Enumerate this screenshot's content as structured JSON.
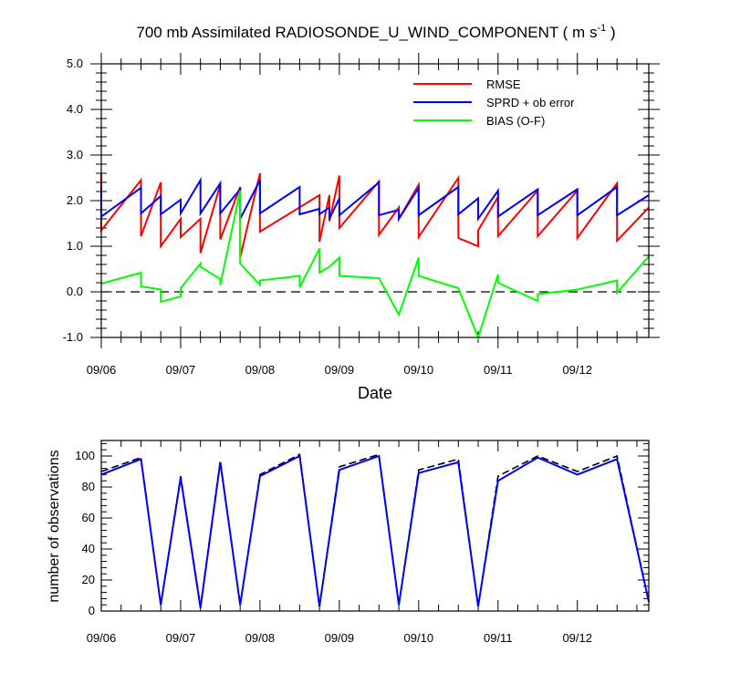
{
  "chart_data": [
    {
      "type": "line",
      "title_main": "700 mb Assimilated RADIOSONDE_U_WIND_COMPONENT ( m s",
      "title_sup": "-1",
      "title_tail": " )",
      "xlabel": "Date",
      "ylabel": "",
      "x_range": [
        0,
        6.9
      ],
      "ylim": [
        -1.0,
        5.0
      ],
      "x_ticks": [
        {
          "x": 0,
          "label": "09/06"
        },
        {
          "x": 1,
          "label": "09/07"
        },
        {
          "x": 2,
          "label": "09/08"
        },
        {
          "x": 3,
          "label": "09/09"
        },
        {
          "x": 4,
          "label": "09/10"
        },
        {
          "x": 5,
          "label": "09/11"
        },
        {
          "x": 6,
          "label": "09/12"
        }
      ],
      "y_ticks": [
        {
          "y": -1.0,
          "label": "-1.0"
        },
        {
          "y": 0.0,
          "label": "0.0"
        },
        {
          "y": 1.0,
          "label": "1.0"
        },
        {
          "y": 2.0,
          "label": "2.0"
        },
        {
          "y": 3.0,
          "label": "3.0"
        },
        {
          "y": 4.0,
          "label": "4.0"
        },
        {
          "y": 5.0,
          "label": "5.0"
        }
      ],
      "zero_line": true,
      "legend_position": "top-right",
      "series": [
        {
          "name": "RMSE",
          "color": "#ff0000",
          "points": [
            [
              0,
              2.6
            ],
            [
              0,
              1.35
            ],
            [
              0.5,
              2.45
            ],
            [
              0.5,
              1.22
            ],
            [
              0.75,
              2.4
            ],
            [
              0.75,
              1.0
            ],
            [
              1,
              1.6
            ],
            [
              1,
              1.2
            ],
            [
              1.25,
              1.6
            ],
            [
              1.25,
              0.85
            ],
            [
              1.5,
              2.35
            ],
            [
              1.5,
              1.15
            ],
            [
              1.75,
              2.3
            ],
            [
              1.75,
              0.75
            ],
            [
              2,
              2.6
            ],
            [
              2,
              1.32
            ],
            [
              2.75,
              2.12
            ],
            [
              2.75,
              1.1
            ],
            [
              2.875,
              2.12
            ],
            [
              2.875,
              1.55
            ],
            [
              3,
              2.55
            ],
            [
              3,
              1.4
            ],
            [
              3.5,
              2.42
            ],
            [
              3.5,
              1.25
            ],
            [
              3.75,
              1.85
            ],
            [
              3.75,
              1.6
            ],
            [
              4,
              2.35
            ],
            [
              4,
              1.2
            ],
            [
              4.5,
              2.5
            ],
            [
              4.5,
              1.18
            ],
            [
              4.75,
              1.0
            ],
            [
              4.75,
              1.35
            ],
            [
              5,
              2.08
            ],
            [
              5,
              1.22
            ],
            [
              5.5,
              2.22
            ],
            [
              5.5,
              1.22
            ],
            [
              6,
              2.22
            ],
            [
              6,
              1.18
            ],
            [
              6.5,
              2.38
            ],
            [
              6.5,
              1.12
            ],
            [
              6.9,
              1.85
            ]
          ]
        },
        {
          "name": "SPRD + ob error",
          "color": "#0000ff",
          "points": [
            [
              0,
              2.3
            ],
            [
              0,
              1.65
            ],
            [
              0.5,
              2.28
            ],
            [
              0.5,
              1.72
            ],
            [
              0.75,
              2.1
            ],
            [
              0.75,
              1.7
            ],
            [
              1,
              2.02
            ],
            [
              1,
              1.72
            ],
            [
              1.25,
              2.45
            ],
            [
              1.25,
              1.72
            ],
            [
              1.5,
              2.38
            ],
            [
              1.5,
              1.72
            ],
            [
              1.75,
              2.25
            ],
            [
              1.75,
              1.6
            ],
            [
              2,
              2.45
            ],
            [
              2,
              1.72
            ],
            [
              2.5,
              2.3
            ],
            [
              2.5,
              1.7
            ],
            [
              2.75,
              1.82
            ],
            [
              2.75,
              1.7
            ],
            [
              2.875,
              1.85
            ],
            [
              2.875,
              1.6
            ],
            [
              3,
              2.05
            ],
            [
              3,
              1.68
            ],
            [
              3.5,
              2.4
            ],
            [
              3.5,
              1.68
            ],
            [
              3.75,
              1.8
            ],
            [
              3.75,
              1.6
            ],
            [
              4,
              2.28
            ],
            [
              4,
              1.68
            ],
            [
              4.5,
              2.3
            ],
            [
              4.5,
              1.7
            ],
            [
              4.75,
              2.05
            ],
            [
              4.75,
              1.6
            ],
            [
              5,
              2.22
            ],
            [
              5,
              1.65
            ],
            [
              5.5,
              2.25
            ],
            [
              5.5,
              1.68
            ],
            [
              6,
              2.25
            ],
            [
              6,
              1.68
            ],
            [
              6.5,
              2.3
            ],
            [
              6.5,
              1.68
            ],
            [
              6.9,
              2.12
            ]
          ]
        },
        {
          "name": "BIAS (O-F)",
          "color": "#00ff00",
          "points": [
            [
              0,
              0.18
            ],
            [
              0.5,
              0.42
            ],
            [
              0.5,
              0.12
            ],
            [
              0.75,
              0.05
            ],
            [
              0.75,
              -0.22
            ],
            [
              1,
              -0.1
            ],
            [
              1,
              0.08
            ],
            [
              1.25,
              0.62
            ],
            [
              1.25,
              0.55
            ],
            [
              1.5,
              0.28
            ],
            [
              1.5,
              0.15
            ],
            [
              1.75,
              2.22
            ],
            [
              1.75,
              0.62
            ],
            [
              2,
              0.15
            ],
            [
              2,
              0.25
            ],
            [
              2.5,
              0.35
            ],
            [
              2.5,
              0.1
            ],
            [
              2.75,
              0.95
            ],
            [
              2.75,
              0.42
            ],
            [
              2.875,
              0.55
            ],
            [
              3,
              0.75
            ],
            [
              3,
              0.35
            ],
            [
              3.5,
              0.3
            ],
            [
              3.75,
              -0.5
            ],
            [
              4,
              0.75
            ],
            [
              4,
              0.35
            ],
            [
              4.5,
              0.08
            ],
            [
              4.75,
              -1.0
            ],
            [
              5,
              0.38
            ],
            [
              5,
              0.2
            ],
            [
              5.5,
              -0.2
            ],
            [
              5.5,
              -0.05
            ],
            [
              6,
              0.05
            ],
            [
              6.5,
              0.25
            ],
            [
              6.5,
              -0.02
            ],
            [
              6.9,
              0.78
            ]
          ]
        }
      ]
    },
    {
      "type": "line",
      "title": "",
      "xlabel": "",
      "ylabel": "number of observations",
      "x_range": [
        0,
        6.9
      ],
      "ylim": [
        0,
        110
      ],
      "x_ticks": [
        {
          "x": 0,
          "label": "09/06"
        },
        {
          "x": 1,
          "label": "09/07"
        },
        {
          "x": 2,
          "label": "09/08"
        },
        {
          "x": 3,
          "label": "09/09"
        },
        {
          "x": 4,
          "label": "09/10"
        },
        {
          "x": 5,
          "label": "09/11"
        },
        {
          "x": 6,
          "label": "09/12"
        }
      ],
      "y_ticks": [
        {
          "y": 0,
          "label": "0"
        },
        {
          "y": 20,
          "label": "20"
        },
        {
          "y": 40,
          "label": "40"
        },
        {
          "y": 60,
          "label": "60"
        },
        {
          "y": 80,
          "label": "80"
        },
        {
          "y": 100,
          "label": "100"
        }
      ],
      "series": [
        {
          "role": "possible",
          "color": "#000000",
          "dashed": true,
          "points": [
            [
              0,
              90
            ],
            [
              0.5,
              99
            ],
            [
              0.75,
              4
            ],
            [
              1,
              87
            ],
            [
              1.25,
              3
            ],
            [
              1.5,
              97
            ],
            [
              1.75,
              4
            ],
            [
              2,
              88
            ],
            [
              2.5,
              101
            ],
            [
              2.75,
              3
            ],
            [
              3,
              93
            ],
            [
              3.5,
              101
            ],
            [
              3.75,
              4
            ],
            [
              4,
              91
            ],
            [
              4.5,
              98
            ],
            [
              4.75,
              3
            ],
            [
              5,
              87
            ],
            [
              5.5,
              100
            ],
            [
              6,
              90
            ],
            [
              6.5,
              100
            ],
            [
              6.9,
              6
            ]
          ]
        },
        {
          "role": "used",
          "color": "#0000ff",
          "dashed": false,
          "points": [
            [
              0,
              88
            ],
            [
              0.5,
              98
            ],
            [
              0.75,
              4
            ],
            [
              1,
              86
            ],
            [
              1.25,
              2
            ],
            [
              1.5,
              96
            ],
            [
              1.75,
              4
            ],
            [
              2,
              87
            ],
            [
              2.5,
              100
            ],
            [
              2.75,
              3
            ],
            [
              3,
              91
            ],
            [
              3.5,
              100
            ],
            [
              3.75,
              4
            ],
            [
              4,
              89
            ],
            [
              4.5,
              96
            ],
            [
              4.75,
              3
            ],
            [
              5,
              84
            ],
            [
              5.5,
              99
            ],
            [
              6,
              88
            ],
            [
              6.5,
              98
            ],
            [
              6.9,
              6
            ]
          ]
        }
      ]
    }
  ]
}
